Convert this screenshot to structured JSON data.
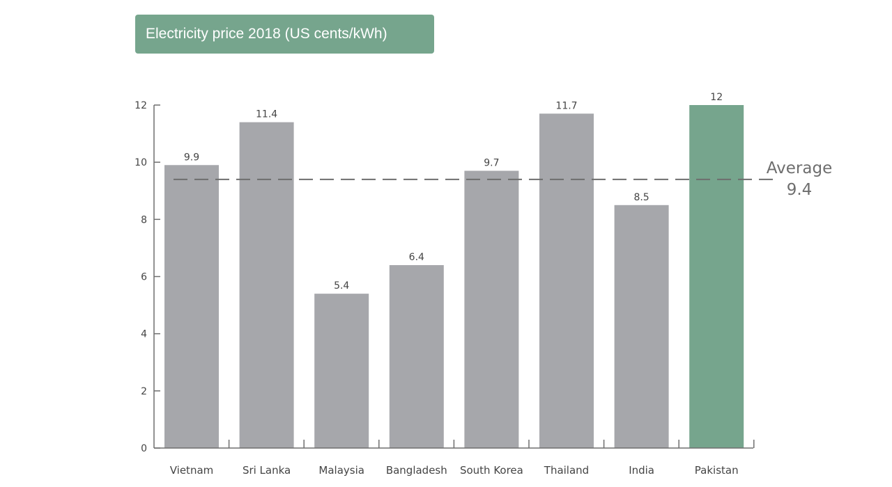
{
  "colors": {
    "bar_default": "#a6a7ab",
    "bar_highlight": "#76a58d",
    "title_bg": "#76a58d",
    "axis": "#6e6e6e",
    "average_line": "#6e6e6e"
  },
  "chart_data": {
    "type": "bar",
    "title": "Electricity price 2018 (US cents/kWh)",
    "categories": [
      "Vietnam",
      "Sri Lanka",
      "Malaysia",
      "Bangladesh",
      "South Korea",
      "Thailand",
      "India",
      "Pakistan"
    ],
    "values": [
      9.9,
      11.4,
      5.4,
      6.4,
      9.7,
      11.7,
      8.5,
      12
    ],
    "value_labels": [
      "9.9",
      "11.4",
      "5.4",
      "6.4",
      "9.7",
      "11.7",
      "8.5",
      "12"
    ],
    "highlight": "Pakistan",
    "ylim": [
      0,
      12
    ],
    "yticks": [
      0,
      2,
      4,
      6,
      8,
      10,
      12
    ],
    "ytick_labels": [
      "0",
      "2",
      "4",
      "6",
      "8",
      "10",
      "12"
    ],
    "xlabel": "",
    "ylabel": "",
    "grid": false,
    "average": {
      "value": 9.4,
      "label_line1": "Average",
      "label_line2": "9.4"
    }
  }
}
